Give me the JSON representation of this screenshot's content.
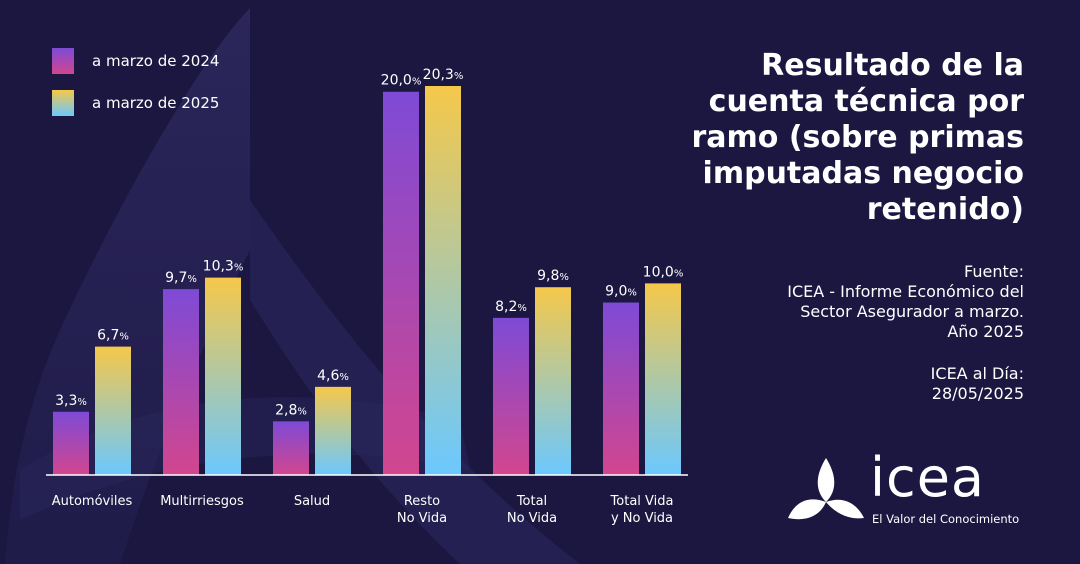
{
  "legend": {
    "items": [
      {
        "label": "a marzo de 2024"
      },
      {
        "label": "a marzo de 2025"
      }
    ]
  },
  "title": {
    "lines": [
      "Resultado de la",
      "cuenta técnica por",
      "ramo (sobre primas",
      "imputadas negocio",
      "retenido)"
    ]
  },
  "source": {
    "lines": [
      "Fuente:",
      "ICEA - Informe Económico del",
      "Sector Asegurador a marzo.",
      "Año 2025"
    ]
  },
  "published": {
    "lines": [
      "ICEA al Día:",
      "28/05/2025"
    ]
  },
  "logo": {
    "word": "icea",
    "tagline": "El Valor del Conocimiento"
  },
  "colors": {
    "background": "#1b1740",
    "series_2024_top": "#7e4ad6",
    "series_2024_bottom": "#d2468e",
    "series_2025_top": "#f5c84a",
    "series_2025_bottom": "#6bc8ff"
  },
  "chart_data": {
    "type": "bar",
    "categories": [
      [
        "Automóviles"
      ],
      [
        "Multirriesgos"
      ],
      [
        "Salud"
      ],
      [
        "Resto",
        "No Vida"
      ],
      [
        "Total",
        "No Vida"
      ],
      [
        "Total Vida",
        "y No Vida"
      ]
    ],
    "series": [
      {
        "name": "a marzo de 2024",
        "values": [
          3.3,
          9.7,
          2.8,
          20.0,
          8.2,
          9.0
        ],
        "labels": [
          "3,3",
          "9,7",
          "2,8",
          "20,0",
          "8,2",
          "9,0"
        ]
      },
      {
        "name": "a marzo de 2025",
        "values": [
          6.7,
          10.3,
          4.6,
          20.3,
          9.8,
          10.0
        ],
        "labels": [
          "6,7",
          "10,3",
          "4,6",
          "20,3",
          "9,8",
          "10,0"
        ]
      }
    ],
    "value_suffix": "%",
    "ylim": [
      0,
      20.3
    ],
    "grid": false,
    "legend_position": "top-left"
  }
}
